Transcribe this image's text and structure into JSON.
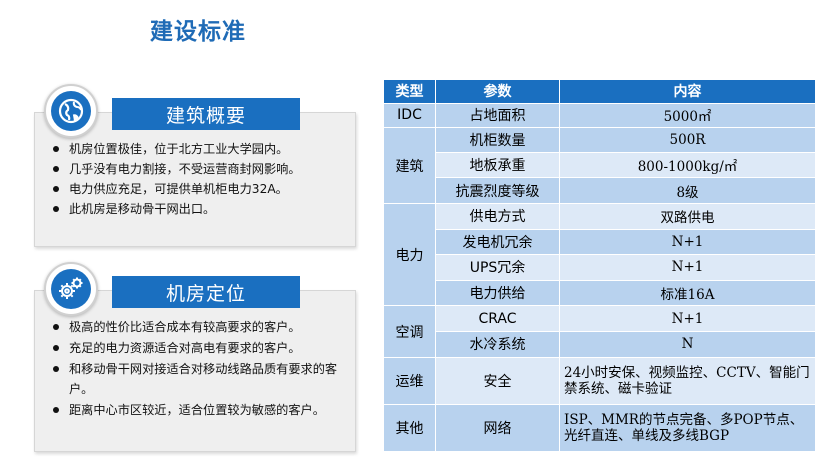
{
  "page_title": "建设标准",
  "sections": [
    {
      "title": "建筑概要",
      "icon": "globe-icon",
      "items": [
        "机房位置极佳，位于北方工业大学园内。",
        "几乎没有电力割接，不受运营商封网影响。",
        "电力供应充足，可提供单机柜电力32A。",
        "此机房是移动骨干网出口。"
      ]
    },
    {
      "title": "机房定位",
      "icon": "gears-icon",
      "items": [
        "极高的性价比适合成本有较高要求的客户。",
        "充足的电力资源适合对高电有要求的客户。",
        "和移动骨干网对接适合对移动线路品质有要求的客户。",
        "距离中心市区较近，适合位置较为敏感的客户。"
      ]
    }
  ],
  "table": {
    "headers": [
      "类型",
      "参数",
      "内容"
    ],
    "rows": [
      {
        "category": "IDC",
        "param": "占地面积",
        "value": "5000㎡"
      },
      {
        "category": "建筑",
        "param": "机柜数量",
        "value": "500R"
      },
      {
        "category": "",
        "param": "地板承重",
        "value": "800-1000kg/㎡"
      },
      {
        "category": "",
        "param": "抗震烈度等级",
        "value": "8级"
      },
      {
        "category": "电力",
        "param": "供电方式",
        "value": "双路供电"
      },
      {
        "category": "",
        "param": "发电机冗余",
        "value": "N+1"
      },
      {
        "category": "",
        "param": "UPS冗余",
        "value": "N+1"
      },
      {
        "category": "",
        "param": "电力供给",
        "value": "标准16A"
      },
      {
        "category": "空调",
        "param": "CRAC",
        "value": "N+1"
      },
      {
        "category": "",
        "param": "水冷系统",
        "value": "N"
      },
      {
        "category": "运维",
        "param": "安全",
        "value": "24小时安保、视频监控、CCTV、智能门禁系统、磁卡验证"
      },
      {
        "category": "其他",
        "param": "网络",
        "value": "ISP、MMR的节点完备、多POP节点、光纤直连、单线及多线BGP"
      }
    ]
  },
  "colors": {
    "accent": "#1a6fc0",
    "title": "#1f6bb6",
    "table_row_dark": "#b8d2ee",
    "table_row_light": "#dde9f7",
    "panel_bg": "#efefef"
  }
}
